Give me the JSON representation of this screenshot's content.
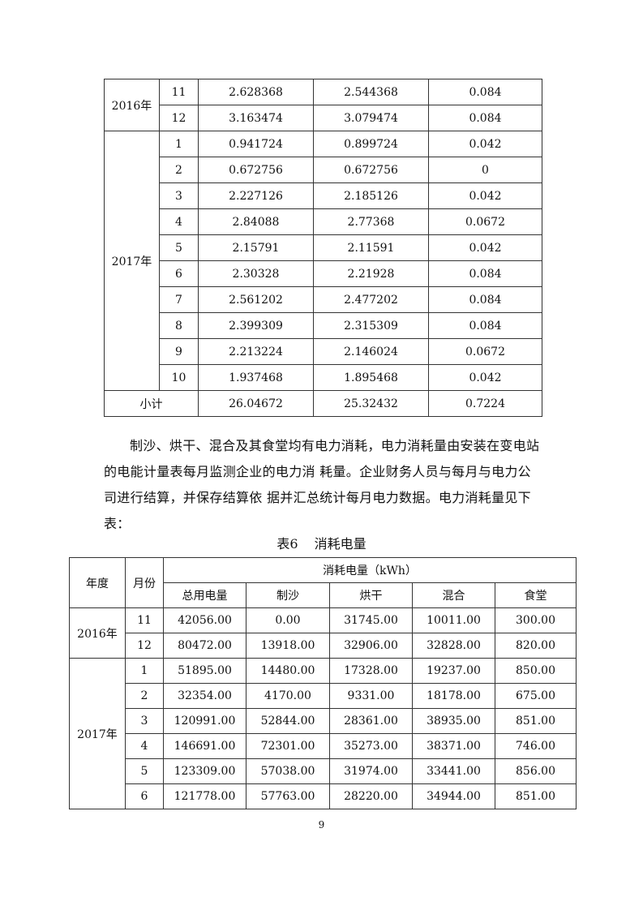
{
  "table_prev": {
    "rows": [
      {
        "year": "2016年",
        "month": "11",
        "a": "2.628368",
        "b": "2.544368",
        "c": "0.084"
      },
      {
        "month": "12",
        "a": "3.163474",
        "b": "3.079474",
        "c": "0.084"
      },
      {
        "year": "2017年",
        "month": "1",
        "a": "0.941724",
        "b": "0.899724",
        "c": "0.042"
      },
      {
        "month": "2",
        "a": "0.672756",
        "b": "0.672756",
        "c": "0"
      },
      {
        "month": "3",
        "a": "2.227126",
        "b": "2.185126",
        "c": "0.042"
      },
      {
        "month": "4",
        "a": "2.84088",
        "b": "2.77368",
        "c": "0.0672"
      },
      {
        "month": "5",
        "a": "2.15791",
        "b": "2.11591",
        "c": "0.042"
      },
      {
        "month": "6",
        "a": "2.30328",
        "b": "2.21928",
        "c": "0.084"
      },
      {
        "month": "7",
        "a": "2.561202",
        "b": "2.477202",
        "c": "0.084"
      },
      {
        "month": "8",
        "a": "2.399309",
        "b": "2.315309",
        "c": "0.084"
      },
      {
        "month": "9",
        "a": "2.213224",
        "b": "2.146024",
        "c": "0.0672"
      },
      {
        "month": "10",
        "a": "1.937468",
        "b": "1.895468",
        "c": "0.042"
      }
    ],
    "subtotal": {
      "label": "小计",
      "a": "26.04672",
      "b": "25.32432",
      "c": "0.7224"
    }
  },
  "paragraph": "制沙、烘干、混合及其食堂均有电力消耗，电力消耗量由安装在变电站的电能计量表每月监测企业的电力消 耗量。企业财务人员与每月与电力公司进行结算，并保存结算依 据并汇总统计每月电力数据。电力消耗量见下表：",
  "caption": {
    "number": "表6",
    "title": "消耗电量"
  },
  "table6": {
    "headers": {
      "year": "年度",
      "month": "月份",
      "group": "消耗电量（kWh）",
      "cols": [
        "总用电量",
        "制沙",
        "烘干",
        "混合",
        "食堂"
      ]
    },
    "rows": [
      {
        "year": "2016年",
        "month": "11",
        "v": [
          "42056.00",
          "0.00",
          "31745.00",
          "10011.00",
          "300.00"
        ]
      },
      {
        "month": "12",
        "v": [
          "80472.00",
          "13918.00",
          "32906.00",
          "32828.00",
          "820.00"
        ]
      },
      {
        "year": "2017年",
        "month": "1",
        "v": [
          "51895.00",
          "14480.00",
          "17328.00",
          "19237.00",
          "850.00"
        ]
      },
      {
        "month": "2",
        "v": [
          "32354.00",
          "4170.00",
          "9331.00",
          "18178.00",
          "675.00"
        ]
      },
      {
        "month": "3",
        "v": [
          "120991.00",
          "52844.00",
          "28361.00",
          "38935.00",
          "851.00"
        ]
      },
      {
        "month": "4",
        "v": [
          "146691.00",
          "72301.00",
          "35273.00",
          "38371.00",
          "746.00"
        ]
      },
      {
        "month": "5",
        "v": [
          "123309.00",
          "57038.00",
          "31974.00",
          "33441.00",
          "856.00"
        ]
      },
      {
        "month": "6",
        "v": [
          "121778.00",
          "57763.00",
          "28220.00",
          "34944.00",
          "851.00"
        ]
      }
    ]
  },
  "page_number": "9"
}
